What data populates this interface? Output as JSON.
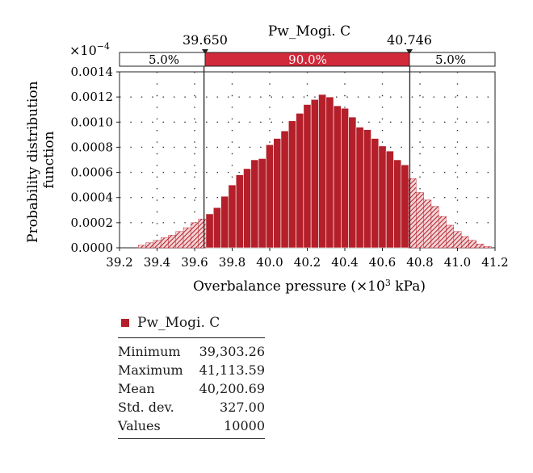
{
  "chart_data": {
    "type": "bar",
    "title": "Pw_Mogi. C",
    "xlabel": "Overbalance pressure",
    "xlabel_unit": "kPa",
    "ylabel": "Probability distribution function",
    "y_multiplier": "×10",
    "y_multiplier_exp": "−4",
    "x_ticks": [
      "39.2",
      "39.4",
      "39.6",
      "39.8",
      "40.0",
      "40.2",
      "40.4",
      "40.6",
      "40.8",
      "41.0",
      "41.2"
    ],
    "y_ticks": [
      "0.0000",
      "0.0002",
      "0.0004",
      "0.0006",
      "0.0008",
      "0.0010",
      "0.0012",
      "0.0014"
    ],
    "xlim": [
      39.2,
      41.2
    ],
    "ylim": [
      0,
      0.0014
    ],
    "grid": "dotted",
    "bin_start": 39.3,
    "bin_width": 0.04,
    "values": [
      2e-05,
      4e-05,
      6e-05,
      8e-05,
      0.0001,
      0.00013,
      0.00016,
      0.0002,
      0.00023,
      0.00027,
      0.00032,
      0.00041,
      0.0005,
      0.00058,
      0.00063,
      0.0007,
      0.00071,
      0.00082,
      0.00087,
      0.00093,
      0.00101,
      0.00107,
      0.00114,
      0.00118,
      0.00122,
      0.0012,
      0.00113,
      0.00111,
      0.00104,
      0.00096,
      0.00094,
      0.00087,
      0.00081,
      0.00077,
      0.0007,
      0.00066,
      0.00055,
      0.00044,
      0.00038,
      0.00033,
      0.00025,
      0.00018,
      0.00013,
      9e-05,
      6e-05,
      3e-05,
      1e-05
    ],
    "lower_threshold": 39.65,
    "upper_threshold": 40.746,
    "lower_threshold_label": "39.650",
    "upper_threshold_label": "40.746",
    "percent_left": "5.0%",
    "percent_middle": "90.0%",
    "percent_right": "5.0%",
    "colors": {
      "bar": "#b41f2a",
      "tail": "#b41f2a",
      "middle_band": "#d12a3a"
    }
  },
  "legend": {
    "label": "Pw_Mogi. C"
  },
  "stats": [
    {
      "label": "Minimum",
      "value": "39,303.26"
    },
    {
      "label": "Maximum",
      "value": "41,113.59"
    },
    {
      "label": "Mean",
      "value": "40,200.69"
    },
    {
      "label": "Std. dev.",
      "value": "327.00"
    },
    {
      "label": "Values",
      "value": "10000"
    }
  ]
}
